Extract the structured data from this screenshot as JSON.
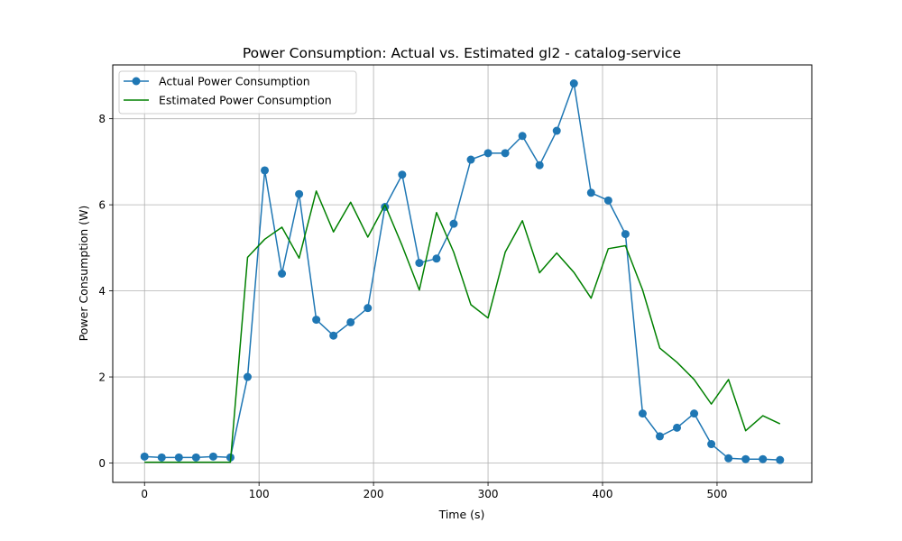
{
  "chart_data": {
    "type": "line",
    "title": "Power Consumption: Actual vs. Estimated gl2 - catalog-service",
    "xlabel": "Time (s)",
    "ylabel": "Power Consumption (W)",
    "xlim": [
      -27.75,
      582.75
    ],
    "ylim": [
      -0.45,
      9.25
    ],
    "xticks": [
      0,
      100,
      200,
      300,
      400,
      500
    ],
    "yticks": [
      0,
      2,
      4,
      6,
      8
    ],
    "grid": true,
    "legend_position": "upper left",
    "x": [
      0,
      15,
      30,
      45,
      60,
      75,
      90,
      105,
      120,
      135,
      150,
      165,
      180,
      195,
      210,
      225,
      240,
      255,
      270,
      285,
      300,
      315,
      330,
      345,
      360,
      375,
      390,
      405,
      420,
      435,
      450,
      465,
      480,
      495,
      510,
      525,
      540,
      555
    ],
    "series": [
      {
        "name": "Actual Power Consumption",
        "color": "#1f77b4",
        "marker": "circle",
        "values": [
          0.15,
          0.13,
          0.13,
          0.13,
          0.15,
          0.13,
          2.0,
          6.8,
          4.4,
          6.25,
          3.33,
          2.96,
          3.27,
          3.6,
          5.95,
          6.7,
          4.65,
          4.75,
          5.56,
          7.05,
          7.2,
          7.2,
          7.6,
          6.92,
          7.72,
          8.82,
          6.28,
          6.1,
          5.32,
          1.15,
          0.62,
          0.82,
          1.15,
          0.44,
          0.11,
          0.09,
          0.09,
          0.07
        ]
      },
      {
        "name": "Estimated Power Consumption",
        "color": "#008000",
        "marker": "none",
        "values": [
          0.02,
          0.02,
          0.02,
          0.02,
          0.02,
          0.02,
          4.78,
          5.2,
          5.48,
          4.76,
          6.32,
          5.37,
          6.06,
          5.25,
          6.0,
          5.05,
          4.02,
          5.82,
          4.9,
          3.68,
          3.37,
          4.9,
          5.63,
          4.42,
          4.88,
          4.43,
          3.83,
          4.98,
          5.05,
          4.02,
          2.67,
          2.34,
          1.94,
          1.37,
          1.94,
          0.75,
          1.1,
          0.91
        ]
      }
    ]
  }
}
